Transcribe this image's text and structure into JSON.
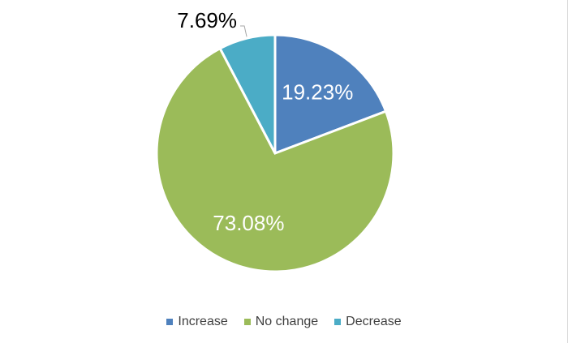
{
  "chart_data": {
    "type": "pie",
    "categories": [
      "Increase",
      "No change",
      "Decrease"
    ],
    "values": [
      19.23,
      73.08,
      7.69
    ],
    "data_labels": [
      "19.23%",
      "73.08%",
      "7.69%"
    ],
    "colors": [
      "#4f81bd",
      "#9bbb59",
      "#4bacc6"
    ],
    "title": "",
    "legend": "bottom"
  }
}
